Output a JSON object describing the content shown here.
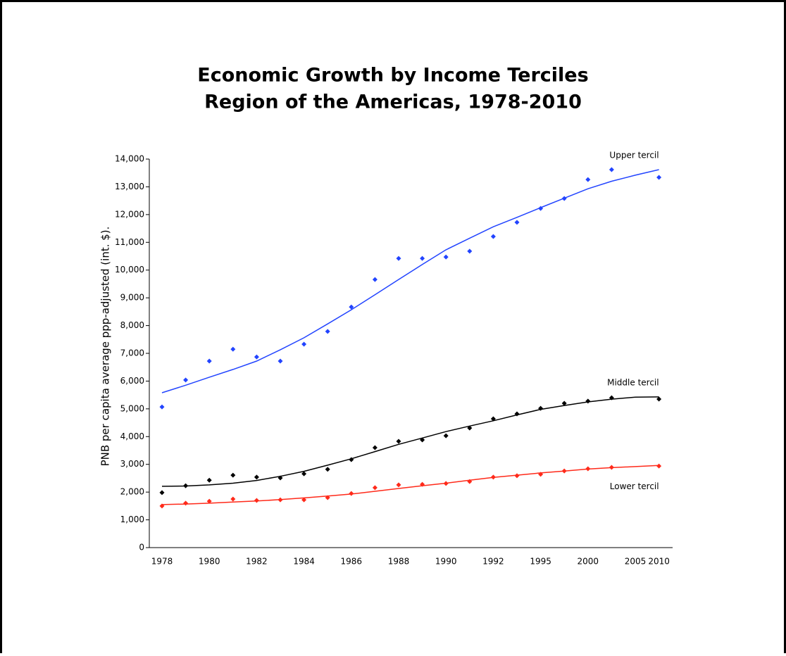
{
  "chart_data": {
    "type": "scatter",
    "title": "Economic Growth by Income Terciles",
    "subtitle": "Region of the Americas, 1978-2010",
    "y_label": "PNB per capita average ppp-adjusted (int. $).",
    "categories": [
      "1978",
      null,
      "1980",
      null,
      "1982",
      null,
      "1984",
      null,
      "1986",
      null,
      "1988",
      null,
      "1990",
      null,
      "1992",
      null,
      "1995",
      null,
      "2000",
      null,
      "2005",
      "2010"
    ],
    "ylim": [
      0,
      14000
    ],
    "yticks": [
      0,
      {
        "value": 1000,
        "label": "1,000"
      },
      {
        "value": 2000,
        "label": "2,000"
      },
      {
        "value": 3000,
        "label": "3,000"
      },
      {
        "value": 4000,
        "label": "4,000"
      },
      {
        "value": 5000,
        "label": "5,000"
      },
      {
        "value": 6000,
        "label": "6,000"
      },
      {
        "value": 7000,
        "label": "7,000"
      },
      {
        "value": 8000,
        "label": "8,000"
      },
      {
        "value": 9000,
        "label": "9,000"
      },
      {
        "value": 10000,
        "label": "10,000"
      },
      {
        "value": 11000,
        "label": "11,000"
      },
      {
        "value": 12000,
        "label": "12,000"
      },
      {
        "value": 13000,
        "label": "13,000"
      },
      {
        "value": 14000,
        "label": "14,000"
      }
    ],
    "grid": false,
    "series": [
      {
        "name": "Upper tercil",
        "color": "#2244ff",
        "values": [
          5070,
          6040,
          6720,
          7150,
          6870,
          6720,
          7330,
          7790,
          8670,
          9660,
          10420,
          10420,
          10470,
          10680,
          11210,
          11720,
          12220,
          12580,
          13260,
          13620,
          null,
          13340
        ],
        "trend": [
          5580,
          5850,
          6140,
          6420,
          6720,
          7130,
          7560,
          8060,
          8570,
          9110,
          9660,
          10200,
          10730,
          11150,
          11560,
          11900,
          12250,
          12590,
          12930,
          13200,
          13420,
          13620
        ]
      },
      {
        "name": "Middle tercil",
        "color": "#000000",
        "values": [
          1980,
          2230,
          2430,
          2610,
          2540,
          2510,
          2660,
          2820,
          3170,
          3600,
          3830,
          3880,
          4030,
          4310,
          4640,
          4820,
          5020,
          5200,
          5280,
          5400,
          null,
          5350
        ],
        "trend": [
          2210,
          2220,
          2260,
          2320,
          2420,
          2570,
          2750,
          2970,
          3200,
          3460,
          3720,
          3950,
          4180,
          4380,
          4570,
          4780,
          4980,
          5120,
          5250,
          5350,
          5420,
          5430
        ]
      },
      {
        "name": "Lower tercil",
        "color": "#ff2a1a",
        "values": [
          1500,
          1600,
          1670,
          1750,
          1700,
          1720,
          1720,
          1800,
          1950,
          2160,
          2260,
          2280,
          2310,
          2380,
          2540,
          2590,
          2640,
          2760,
          2840,
          2890,
          null,
          2940
        ],
        "trend": [
          1550,
          1570,
          1600,
          1640,
          1680,
          1730,
          1790,
          1860,
          1930,
          2030,
          2130,
          2230,
          2320,
          2430,
          2530,
          2610,
          2690,
          2760,
          2830,
          2880,
          2920,
          2960
        ]
      }
    ]
  }
}
